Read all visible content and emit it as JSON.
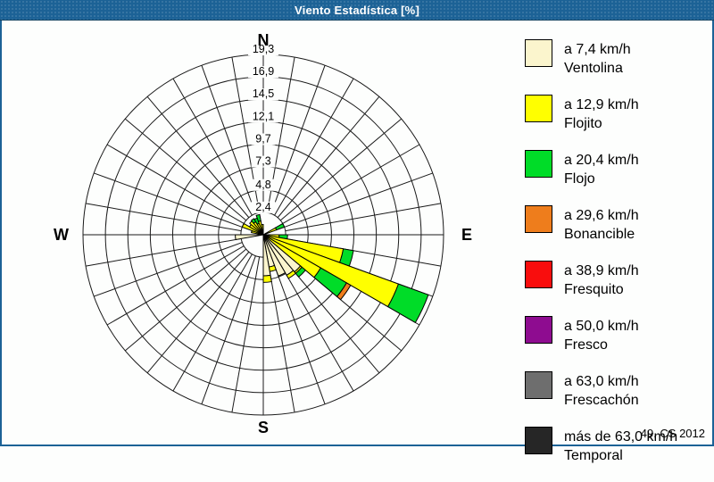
{
  "window": {
    "title": "Viento Estadística [%]",
    "footer": "49. CS 2012"
  },
  "colors": {
    "titlebar": "#1C6296",
    "frame_border": "#1C6296",
    "background": "#FDFEFD",
    "grid": "#1A1A1A",
    "text": "#000000"
  },
  "chart_data": {
    "type": "wind-rose",
    "title": "Viento Estadística [%]",
    "units": "%",
    "sectors": 36,
    "sector_width_deg": 10,
    "compass_labels": {
      "n": "N",
      "e": "E",
      "s": "S",
      "w": "W"
    },
    "rmax": 19.3,
    "ring_values": [
      2.4,
      4.8,
      7.3,
      9.7,
      12.1,
      14.5,
      16.9,
      19.3
    ],
    "ring_labels": [
      "2,4",
      "4,8",
      "7,3",
      "9,7",
      "12,1",
      "14,5",
      "16,9",
      "19,3"
    ],
    "speed_classes": [
      {
        "speed_label": "a 7,4 km/h",
        "name": "Ventolina",
        "color": "#FBF5CD"
      },
      {
        "speed_label": "a 12,9 km/h",
        "name": "Flojito",
        "color": "#FFFF00"
      },
      {
        "speed_label": "a 20,4 km/h",
        "name": "Flojo",
        "color": "#00DC28"
      },
      {
        "speed_label": "a 29,6 km/h",
        "name": "Bonancible",
        "color": "#EE7D1C"
      },
      {
        "speed_label": "a 38,9 km/h",
        "name": "Fresquito",
        "color": "#F90D0D"
      },
      {
        "speed_label": "a 50,0 km/h",
        "name": "Fresco",
        "color": "#8E0C90"
      },
      {
        "speed_label": "a 63,0 km/h",
        "name": "Frescachón",
        "color": "#6E6E6E"
      },
      {
        "speed_label": "más de 63,0 km/h",
        "name": "Temporal",
        "color": "#262626"
      }
    ],
    "bars": [
      {
        "dir_deg": 65,
        "values": [
          0.3,
          1.2,
          0.9,
          0,
          0,
          0,
          0,
          0
        ]
      },
      {
        "dir_deg": 95,
        "values": [
          0.4,
          1.3,
          0.9,
          0,
          0,
          0,
          0,
          0
        ]
      },
      {
        "dir_deg": 105,
        "values": [
          0.5,
          8.2,
          1.1,
          0,
          0,
          0,
          0,
          0
        ]
      },
      {
        "dir_deg": 115,
        "values": [
          0.5,
          14.9,
          3.4,
          0,
          0,
          0,
          0,
          0
        ]
      },
      {
        "dir_deg": 125,
        "values": [
          0.5,
          6.6,
          3.2,
          0.5,
          0,
          0,
          0,
          0
        ]
      },
      {
        "dir_deg": 135,
        "values": [
          5.2,
          0.2,
          0.5,
          0,
          0,
          0,
          0,
          0
        ]
      },
      {
        "dir_deg": 145,
        "values": [
          5.0,
          0.4,
          0,
          0,
          0,
          0,
          0,
          0
        ]
      },
      {
        "dir_deg": 155,
        "values": [
          4.7,
          0,
          0,
          0,
          0,
          0,
          0,
          0
        ]
      },
      {
        "dir_deg": 165,
        "values": [
          3.5,
          0.5,
          0,
          0,
          0,
          0,
          0,
          0
        ]
      },
      {
        "dir_deg": 175,
        "values": [
          4.4,
          0.7,
          0,
          0,
          0,
          0,
          0,
          0
        ]
      },
      {
        "dir_deg": 265,
        "values": [
          3.0,
          0,
          0,
          0,
          0,
          0,
          0,
          0
        ]
      },
      {
        "dir_deg": 285,
        "values": [
          0.3,
          1.0,
          0,
          0,
          0,
          0,
          0,
          0
        ]
      },
      {
        "dir_deg": 295,
        "values": [
          0.3,
          2.1,
          0,
          0,
          0,
          0,
          0,
          0
        ]
      },
      {
        "dir_deg": 305,
        "values": [
          0.3,
          1.4,
          0,
          0,
          0,
          0,
          0,
          0
        ]
      },
      {
        "dir_deg": 315,
        "values": [
          0.4,
          1.5,
          0,
          0,
          0,
          0,
          0,
          0
        ]
      },
      {
        "dir_deg": 325,
        "values": [
          0.3,
          1.3,
          0.4,
          0,
          0,
          0,
          0,
          0
        ]
      },
      {
        "dir_deg": 335,
        "values": [
          0.3,
          1.0,
          0.6,
          0,
          0,
          0,
          0,
          0
        ]
      },
      {
        "dir_deg": 345,
        "values": [
          0.4,
          1.1,
          0.7,
          0,
          0,
          0,
          0,
          0
        ]
      },
      {
        "dir_deg": 355,
        "values": [
          0.3,
          0.8,
          0,
          0,
          0,
          0,
          0,
          0
        ]
      }
    ],
    "layout": {
      "grid": true,
      "legend_position": "right",
      "radial_axis_direction": "N"
    }
  }
}
